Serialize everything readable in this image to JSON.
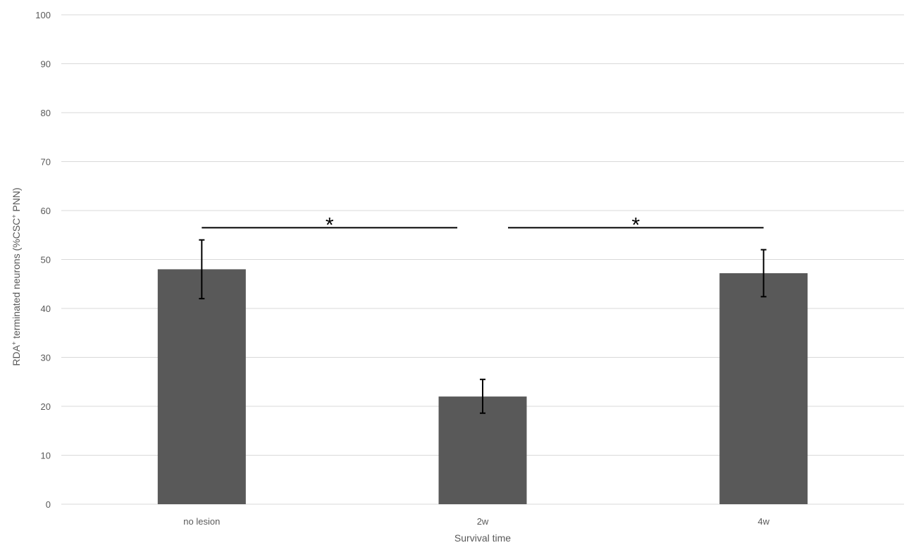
{
  "chart_data": {
    "type": "bar",
    "title": "",
    "xlabel": "Survival time",
    "ylabel": {
      "p1": "RDA",
      "sup1": "+",
      "p2": " terminated neurons (%CSC",
      "sup2": "+",
      "p3": " PNN)"
    },
    "categories": [
      "no lesion",
      "2w",
      "4w"
    ],
    "values": [
      48,
      22,
      47.2
    ],
    "error_low": [
      42,
      18.6,
      42.4
    ],
    "error_high": [
      54,
      25.5,
      52
    ],
    "ylim": [
      0,
      100
    ],
    "yticks": [
      0,
      10,
      20,
      30,
      40,
      50,
      60,
      70,
      80,
      90,
      100
    ],
    "grid": true,
    "legend": "none",
    "bar_color": "#595959",
    "gridline_color": "#d9d9d9",
    "significance": [
      {
        "from": 0,
        "to": 1,
        "y": 56.5,
        "label": "*"
      },
      {
        "from": 1,
        "to": 2,
        "y": 56.5,
        "label": "*"
      }
    ]
  }
}
